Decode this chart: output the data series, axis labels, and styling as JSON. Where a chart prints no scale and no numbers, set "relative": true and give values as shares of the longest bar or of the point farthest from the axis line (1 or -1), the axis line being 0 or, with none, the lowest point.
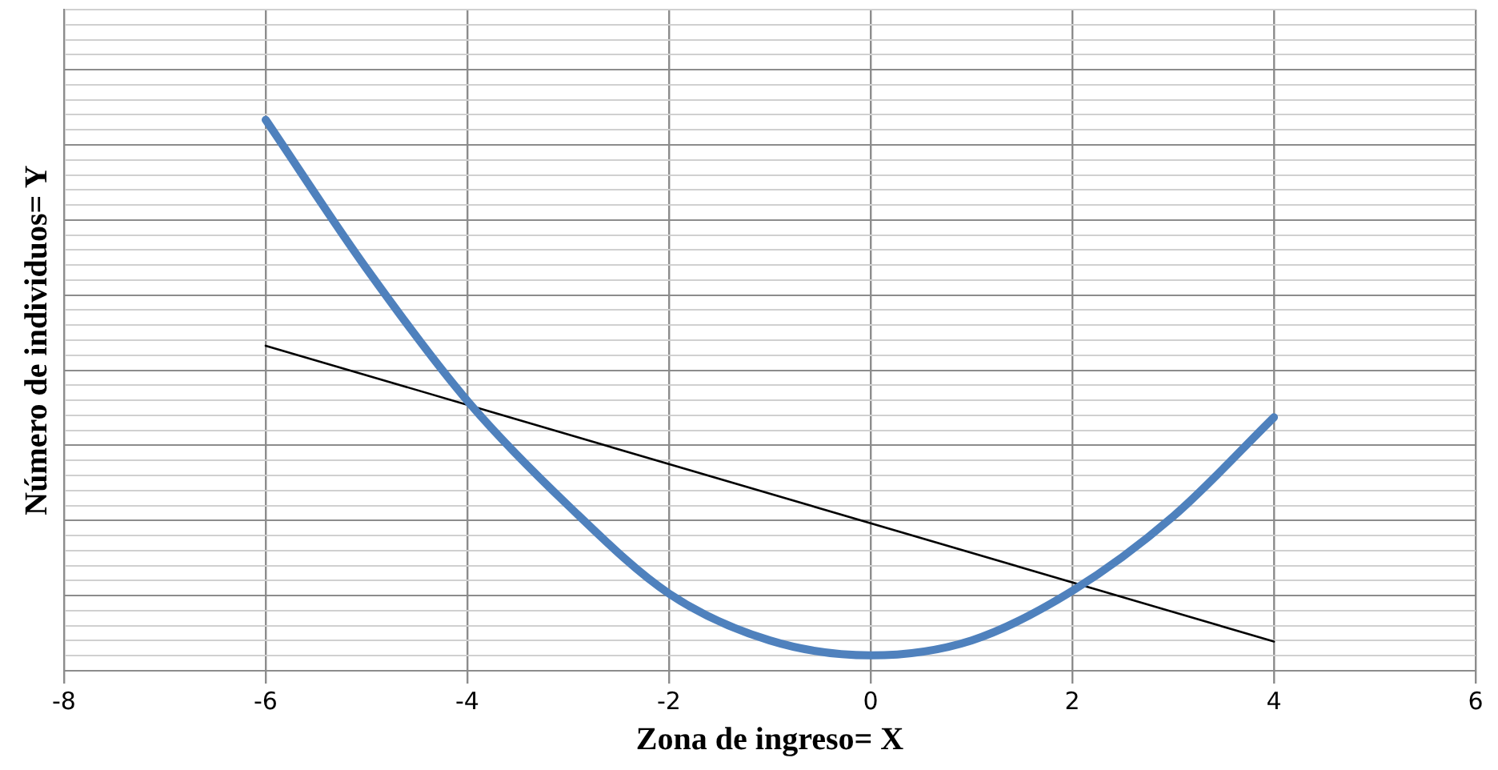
{
  "chart_data": {
    "type": "line",
    "relative": true,
    "xlabel": "Zona de ingreso= X",
    "ylabel": "Número de individuos= Y",
    "xlim": [
      -8,
      6
    ],
    "xticks": [
      -8,
      -6,
      -4,
      -2,
      0,
      2,
      4,
      6
    ],
    "grid": true,
    "legend": false,
    "marker": "none",
    "series": [
      {
        "color": "#4f81bd",
        "x": [
          -6,
          -5,
          -4,
          -3,
          -2,
          -1,
          0,
          1,
          2,
          3,
          4
        ],
        "values": [
          1.0,
          0.73,
          0.49,
          0.3,
          0.14,
          0.055,
          0.028,
          0.055,
          0.145,
          0.28,
          0.46
        ]
      },
      {
        "color": "#000000",
        "x": [
          -6,
          4
        ],
        "values": [
          0.59,
          0.053
        ]
      }
    ]
  }
}
